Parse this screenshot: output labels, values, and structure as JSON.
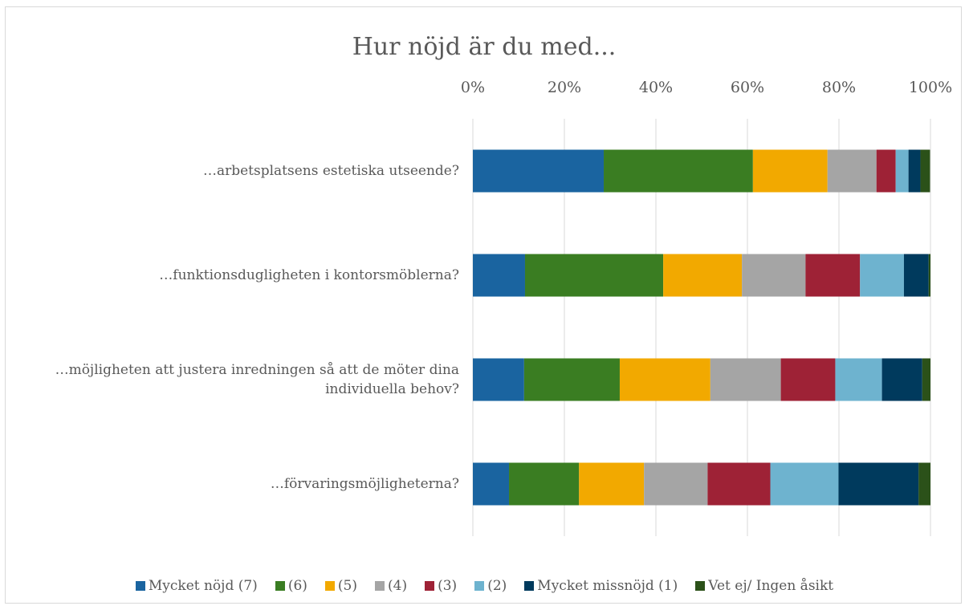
{
  "chart_data": {
    "type": "stacked_barh",
    "title": "Hur nöjd är du med...",
    "categories": [
      "…arbetsplatsens estetiska utseende?",
      "…funktionsdugligheten i kontorsmöblerna?",
      "…möjligheten att justera inredningen så att de möter dina individuella behov?",
      "…förvaringsmöjligheterna?"
    ],
    "series": [
      {
        "name": "Mycket nöjd (7)",
        "color": "#1a64a0",
        "values": [
          28.6,
          11.4,
          11.2,
          7.9
        ]
      },
      {
        "name": "(6)",
        "color": "#3a7d22",
        "values": [
          32.6,
          30.2,
          20.9,
          15.3
        ]
      },
      {
        "name": "(5)",
        "color": "#f2a900",
        "values": [
          16.3,
          17.2,
          19.8,
          14.2
        ]
      },
      {
        "name": "(4)",
        "color": "#a5a5a5",
        "values": [
          10.7,
          13.9,
          15.4,
          13.9
        ]
      },
      {
        "name": "(3)",
        "color": "#9e2236",
        "values": [
          4.2,
          11.9,
          11.9,
          13.7
        ]
      },
      {
        "name": "(2)",
        "color": "#6eb3cf",
        "values": [
          2.8,
          9.6,
          10.2,
          14.9
        ]
      },
      {
        "name": "Mycket missnöjd (1)",
        "color": "#003a5d",
        "values": [
          2.6,
          5.4,
          8.8,
          17.5
        ]
      },
      {
        "name": "Vet ej/ Ingen åsikt",
        "color": "#2b5119",
        "values": [
          2.1,
          0.4,
          1.8,
          2.6
        ]
      }
    ],
    "xlim": [
      0,
      100
    ],
    "xticks": [
      {
        "value": 0,
        "label": "0%"
      },
      {
        "value": 20,
        "label": "20%"
      },
      {
        "value": 40,
        "label": "40%"
      },
      {
        "value": 60,
        "label": "60%"
      },
      {
        "value": 80,
        "label": "80%"
      },
      {
        "value": 100,
        "label": "100%"
      }
    ],
    "grid": true,
    "legend": "bottom"
  }
}
